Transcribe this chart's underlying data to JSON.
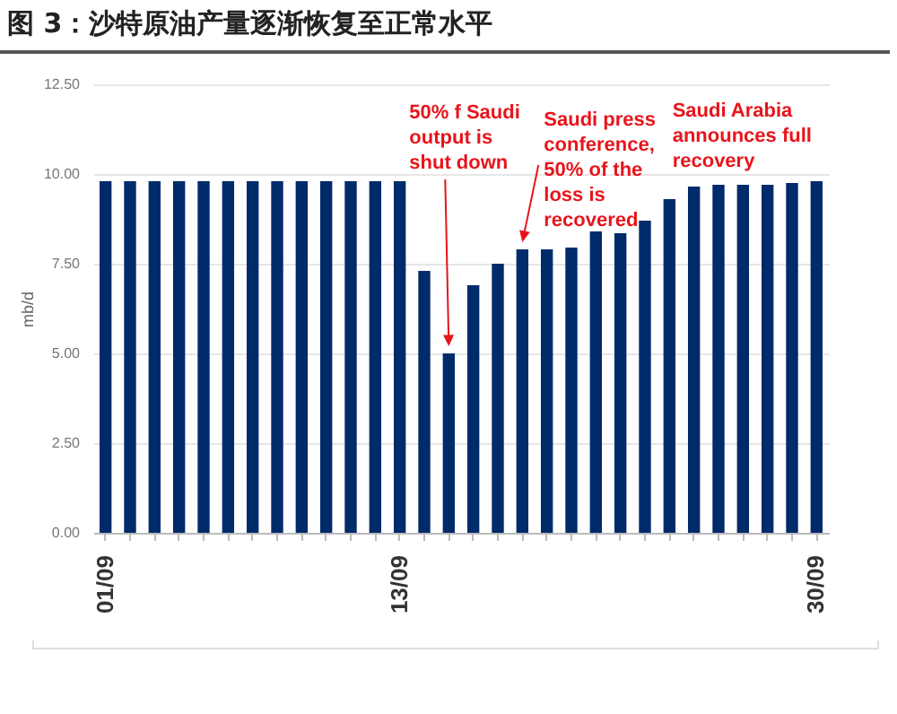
{
  "chart_data": {
    "type": "bar",
    "title": "图 3：沙特原油产量逐渐恢复至正常水平",
    "ylabel": "mb/d",
    "categories": [
      "01/09",
      null,
      null,
      null,
      null,
      null,
      null,
      null,
      null,
      null,
      null,
      null,
      "13/09",
      null,
      null,
      null,
      null,
      null,
      null,
      null,
      null,
      null,
      null,
      null,
      null,
      null,
      null,
      null,
      null,
      "30/09"
    ],
    "values": [
      9.8,
      9.8,
      9.8,
      9.8,
      9.8,
      9.8,
      9.8,
      9.8,
      9.8,
      9.8,
      9.8,
      9.8,
      9.8,
      7.3,
      5.0,
      6.9,
      7.5,
      7.9,
      7.9,
      7.95,
      8.4,
      8.35,
      8.7,
      9.3,
      9.65,
      9.7,
      9.7,
      9.7,
      9.75,
      9.8
    ],
    "color": "#002b6b",
    "ylim": [
      0,
      12.5
    ],
    "yticks": [
      {
        "value": 0,
        "label": "0.00"
      },
      {
        "value": 2.5,
        "label": "2.50"
      },
      {
        "value": 5,
        "label": "5.00"
      },
      {
        "value": 7.5,
        "label": "7.50"
      },
      {
        "value": 10,
        "label": "10.00"
      },
      {
        "value": 12.5,
        "label": "12.50"
      }
    ],
    "grid": "y",
    "annotations": [
      "50% f Saudi output is shut down",
      "Saudi press conference, 50% of the loss is recovered",
      "Saudi Arabia announces full recovery"
    ]
  }
}
